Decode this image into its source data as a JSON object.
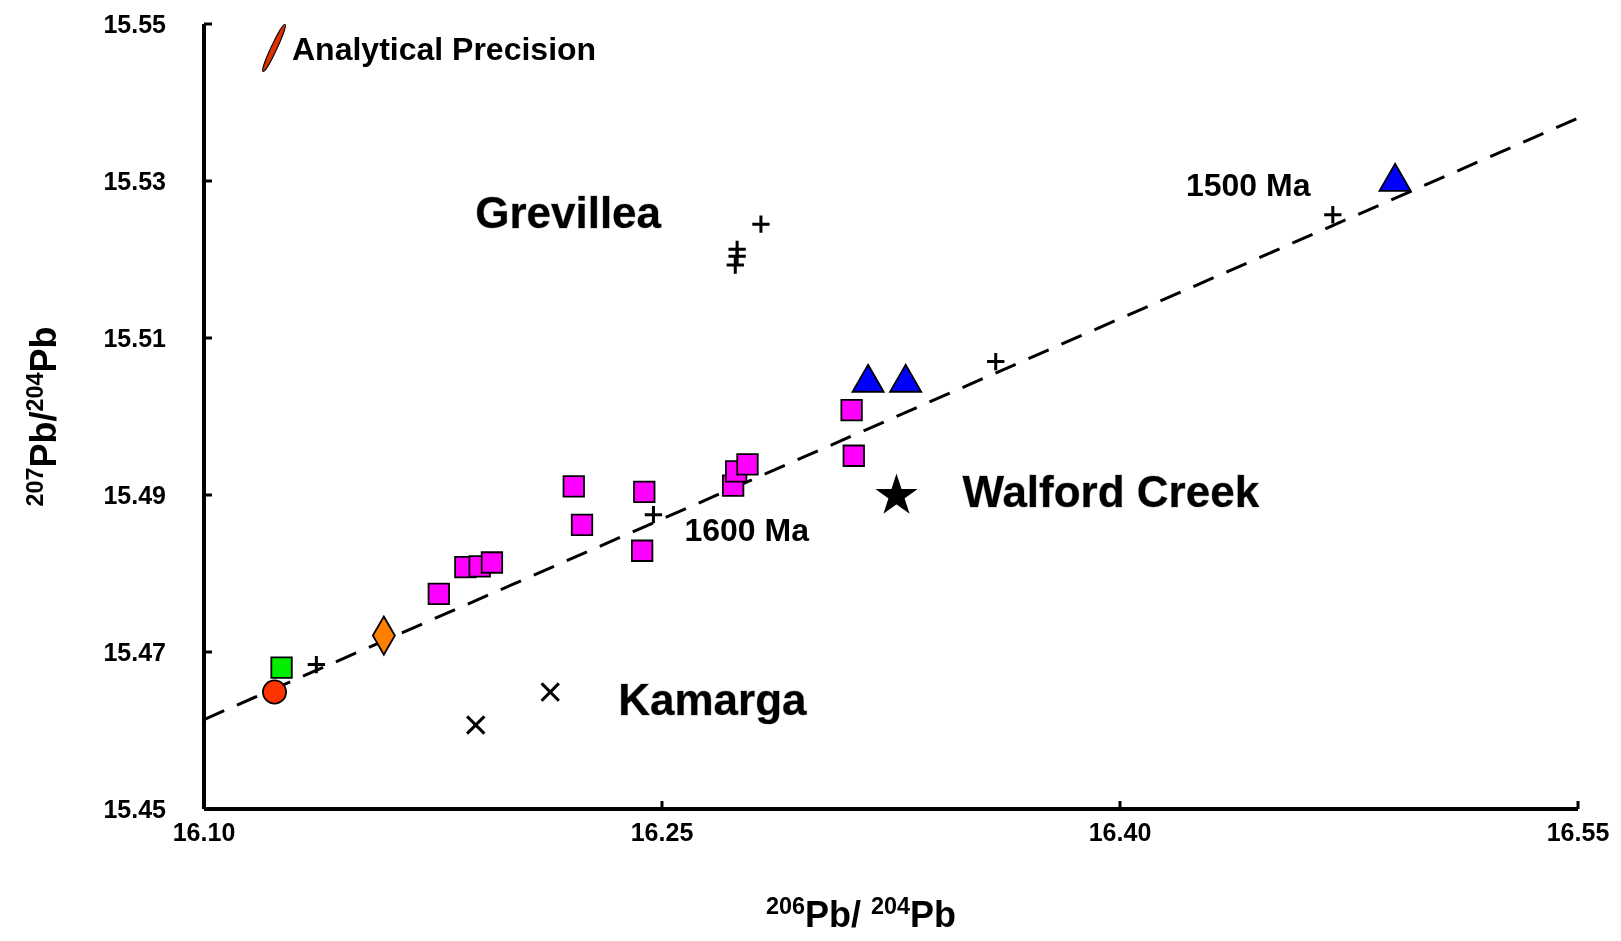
{
  "chart_data": {
    "type": "scatter",
    "xlabel": "$^{206}$Pb/ $^{204}$Pb",
    "ylabel": "$^{207}$Pb/$^{204}$Pb",
    "xlim": [
      16.1,
      16.55
    ],
    "ylim": [
      15.45,
      15.55
    ],
    "xticks": [
      {
        "value": 16.1,
        "label": "16.10"
      },
      16.25,
      {
        "value": 16.4,
        "label": "16.40"
      },
      16.55
    ],
    "yticks": [
      15.45,
      15.47,
      15.49,
      15.51,
      15.53,
      15.55
    ],
    "grid": false,
    "series": [
      {
        "type": "line",
        "color": "#000000",
        "line_style": "dashed",
        "x": [
          16.1,
          16.55
        ],
        "values": [
          15.4614,
          15.538
        ]
      },
      {
        "color": "#000000",
        "marker": "plus",
        "x": [
          16.1368,
          16.2472,
          16.3593,
          16.4697
        ],
        "values": [
          15.4684,
          15.4875,
          15.507,
          15.5257
        ]
      },
      {
        "color": "#ff00ff",
        "marker": "square",
        "x": [
          16.2211,
          16.2238,
          16.2442,
          16.2435,
          16.1769,
          16.1856,
          16.1903,
          16.1943,
          16.2733,
          16.2743,
          16.278,
          16.3121,
          16.3128
        ],
        "values": [
          15.4911,
          15.4862,
          15.4904,
          15.4829,
          15.4774,
          15.4808,
          15.4809,
          15.4814,
          15.4912,
          15.493,
          15.4939,
          15.5008,
          15.495
        ]
      },
      {
        "color": "#0000ff",
        "marker": "triangle",
        "x": [
          16.3175,
          16.3298,
          16.4901
        ],
        "values": [
          15.5043,
          15.5043,
          15.5299
        ]
      },
      {
        "color": "#ff8000",
        "marker": "diamond",
        "x": [
          16.1589
        ],
        "values": [
          15.4721
        ]
      },
      {
        "color": "#00ee00",
        "marker": "square",
        "x": [
          16.1254
        ],
        "values": [
          15.468
        ]
      },
      {
        "color": "#ff3300",
        "marker": "circle",
        "x": [
          16.1231
        ],
        "values": [
          15.4649
        ]
      },
      {
        "color": "#000000",
        "marker": "plus",
        "x": [
          16.2824,
          16.2746,
          16.2746,
          16.274
        ],
        "values": [
          15.5245,
          15.5213,
          15.5204,
          15.5193
        ]
      },
      {
        "color": "#000000",
        "marker": "cross",
        "x": [
          16.2134,
          16.189
        ],
        "values": [
          15.4649,
          15.4607
        ]
      },
      {
        "color": "#000000",
        "marker": "star",
        "x": [
          16.3268
        ],
        "values": [
          15.4899
        ]
      }
    ],
    "annotations": [
      "Analytical Precision",
      "Grevillea",
      "Walford Creek",
      "Kamarga",
      "1600 Ma",
      "1500 Ma"
    ]
  }
}
